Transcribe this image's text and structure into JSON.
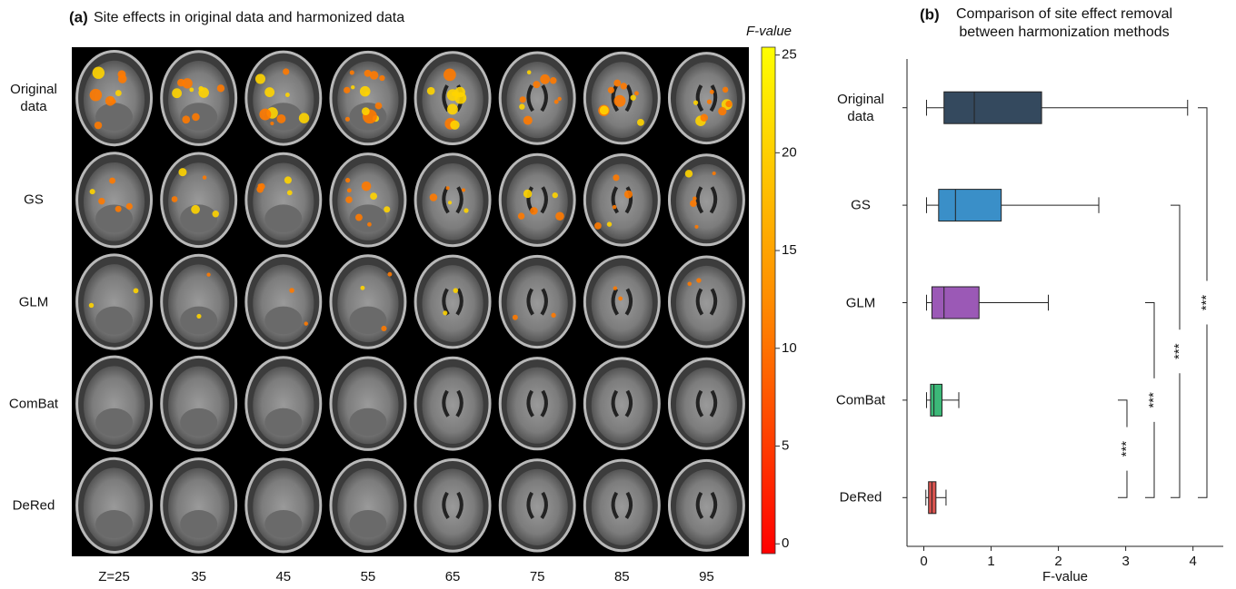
{
  "chart_data": [
    {
      "type": "image-grid",
      "panel_label": "(a)",
      "title": "Site effects in original data and harmonized data",
      "rows": [
        "Original data",
        "GS",
        "GLM",
        "ComBat",
        "DeRed"
      ],
      "columns": [
        "Z=25",
        "35",
        "45",
        "55",
        "65",
        "75",
        "85",
        "95"
      ],
      "colorbar": {
        "label": "F-value",
        "lim": [
          -0.5,
          25.4
        ],
        "ticks": [
          0,
          5,
          10,
          15,
          20,
          25
        ],
        "colors": [
          "#ff0000",
          "#ff8c00",
          "#ffff00"
        ]
      }
    },
    {
      "type": "boxplot",
      "panel_label": "(b)",
      "title": "Comparison of site effect removal between harmonization methods",
      "categories": [
        "Original data",
        "GS",
        "GLM",
        "ComBat",
        "DeRed"
      ],
      "series": [
        {
          "name": "Original data",
          "color": "#34495e",
          "values": {
            "min": 0.04,
            "q1": 0.3,
            "median": 0.75,
            "q3": 1.75,
            "max": 3.92
          }
        },
        {
          "name": "GS",
          "color": "#3a8fc8",
          "values": {
            "min": 0.04,
            "q1": 0.22,
            "median": 0.47,
            "q3": 1.15,
            "max": 2.6
          }
        },
        {
          "name": "GLM",
          "color": "#9b59b6",
          "values": {
            "min": 0.04,
            "q1": 0.12,
            "median": 0.3,
            "q3": 0.82,
            "max": 1.85
          }
        },
        {
          "name": "ComBat",
          "color": "#3cb878",
          "values": {
            "min": 0.04,
            "q1": 0.1,
            "median": 0.15,
            "q3": 0.27,
            "max": 0.52
          }
        },
        {
          "name": "DeRed",
          "color": "#d9534f",
          "values": {
            "min": 0.03,
            "q1": 0.07,
            "median": 0.12,
            "q3": 0.18,
            "max": 0.33
          }
        }
      ],
      "xlabel": "F-value",
      "xlim": [
        -0.25,
        4.45
      ],
      "xticks": [
        0,
        1,
        2,
        3,
        4
      ],
      "comparisons": [
        {
          "groups": [
            "ComBat",
            "DeRed"
          ],
          "label": "***"
        },
        {
          "groups": [
            "GLM",
            "DeRed"
          ],
          "label": "***"
        },
        {
          "groups": [
            "GS",
            "DeRed"
          ],
          "label": "***"
        },
        {
          "groups": [
            "Original data",
            "DeRed"
          ],
          "label": "***"
        }
      ]
    }
  ]
}
